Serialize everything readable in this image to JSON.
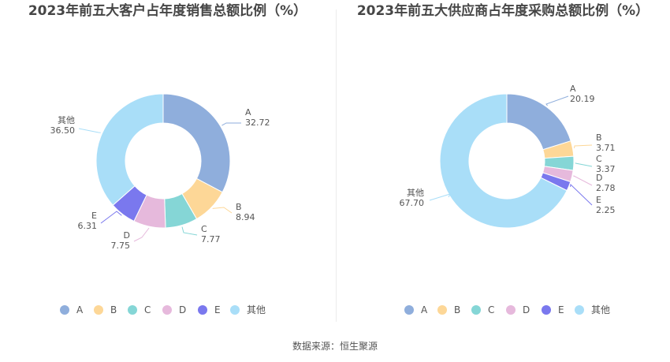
{
  "chart_data": [
    {
      "type": "pie",
      "title": "2023年前五大客户占年度销售总额比例（%）",
      "categories": [
        "A",
        "B",
        "C",
        "D",
        "E",
        "其他"
      ],
      "values": [
        32.72,
        8.94,
        7.77,
        7.75,
        6.31,
        36.5
      ],
      "value_labels": [
        "32.72",
        "8.94",
        "7.77",
        "7.75",
        "6.31",
        "36.50"
      ],
      "colors": [
        "#8faedc",
        "#fdd797",
        "#85d6d6",
        "#e6b9dc",
        "#7a78ee",
        "#a9def8"
      ],
      "legend_position": "bottom"
    },
    {
      "type": "pie",
      "title": "2023年前五大供应商占年度采购总额比例（%）",
      "categories": [
        "A",
        "B",
        "C",
        "D",
        "E",
        "其他"
      ],
      "values": [
        20.19,
        3.71,
        3.37,
        2.78,
        2.25,
        67.7
      ],
      "value_labels": [
        "20.19",
        "3.71",
        "3.37",
        "2.78",
        "2.25",
        "67.70"
      ],
      "colors": [
        "#8faedc",
        "#fdd797",
        "#85d6d6",
        "#e6b9dc",
        "#7a78ee",
        "#a9def8"
      ],
      "legend_position": "bottom"
    }
  ],
  "footer": {
    "source": "数据来源：恒生聚源"
  }
}
